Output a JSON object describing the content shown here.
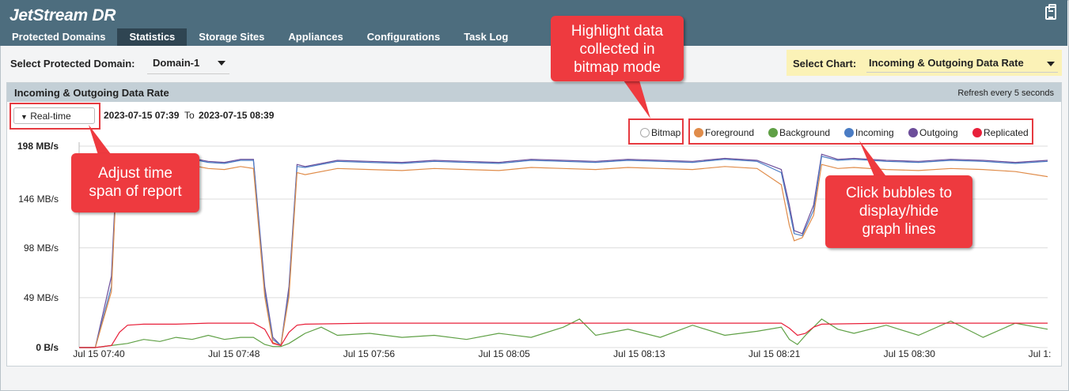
{
  "app": {
    "title": "JetStream DR",
    "clipboard_icon": "clipboard-icon"
  },
  "nav": {
    "tabs": [
      {
        "label": "Protected Domains",
        "active": false
      },
      {
        "label": "Statistics",
        "active": true
      },
      {
        "label": "Storage Sites",
        "active": false
      },
      {
        "label": "Appliances",
        "active": false
      },
      {
        "label": "Configurations",
        "active": false
      },
      {
        "label": "Task Log",
        "active": false
      }
    ]
  },
  "toolbar": {
    "domain_label": "Select Protected Domain:",
    "domain_value": "Domain-1",
    "chart_label": "Select Chart:",
    "chart_value": "Incoming & Outgoing Data Rate"
  },
  "panel": {
    "title": "Incoming & Outgoing Data Rate",
    "refresh": "Refresh every 5 seconds",
    "timespan": "Real-time",
    "from": "2023-07-15 07:39",
    "to_label": "To",
    "to": "2023-07-15 08:39"
  },
  "legend": {
    "bitmap": "Bitmap",
    "items": [
      {
        "label": "Foreground",
        "color": "#e08c4a"
      },
      {
        "label": "Background",
        "color": "#5fa045"
      },
      {
        "label": "Incoming",
        "color": "#4a7cc4"
      },
      {
        "label": "Outgoing",
        "color": "#6c4d9a"
      },
      {
        "label": "Replicated",
        "color": "#e8203a"
      }
    ]
  },
  "callouts": {
    "timespan": [
      "Adjust time",
      "span of report"
    ],
    "bitmap": [
      "Highlight data",
      "collected in",
      "bitmap mode"
    ],
    "bubbles": [
      "Click bubbles to",
      "display/hide",
      "graph lines"
    ]
  },
  "chart_data": {
    "type": "line",
    "y_ticks": [
      "0 B/s",
      "49 MB/s",
      "98 MB/s",
      "146 MB/s",
      "198 MB/s"
    ],
    "ylim": [
      0,
      198
    ],
    "x_ticks": [
      "Jul 15 07:40",
      "Jul 15 07:48",
      "Jul 15 07:56",
      "Jul 15 08:05",
      "Jul 15 08:13",
      "Jul 15 08:21",
      "Jul 15 08:30",
      "Jul 1:"
    ],
    "x_minutes": [
      0,
      60
    ],
    "series": [
      {
        "name": "Outgoing",
        "color": "#6c4d9a",
        "points": [
          [
            0,
            0
          ],
          [
            1,
            0
          ],
          [
            2,
            70
          ],
          [
            2.3,
            170
          ],
          [
            3,
            183
          ],
          [
            4,
            185
          ],
          [
            5,
            180
          ],
          [
            6,
            184
          ],
          [
            7,
            186
          ],
          [
            8,
            183
          ],
          [
            9,
            182
          ],
          [
            10,
            185
          ],
          [
            10.8,
            185
          ],
          [
            11.5,
            60
          ],
          [
            12,
            10
          ],
          [
            12.5,
            2
          ],
          [
            13,
            60
          ],
          [
            13.5,
            180
          ],
          [
            14,
            178
          ],
          [
            16,
            184
          ],
          [
            18,
            183
          ],
          [
            20,
            182
          ],
          [
            22,
            184
          ],
          [
            24,
            183
          ],
          [
            26,
            182
          ],
          [
            28,
            185
          ],
          [
            30,
            184
          ],
          [
            32,
            183
          ],
          [
            34,
            185
          ],
          [
            36,
            184
          ],
          [
            38,
            183
          ],
          [
            40,
            186
          ],
          [
            42,
            184
          ],
          [
            43.5,
            175
          ],
          [
            44,
            140
          ],
          [
            44.3,
            115
          ],
          [
            44.8,
            112
          ],
          [
            45.5,
            140
          ],
          [
            46,
            190
          ],
          [
            47,
            185
          ],
          [
            48,
            186
          ],
          [
            50,
            184
          ],
          [
            52,
            183
          ],
          [
            54,
            185
          ],
          [
            56,
            184
          ],
          [
            58,
            182
          ],
          [
            60,
            184
          ]
        ]
      },
      {
        "name": "Incoming",
        "color": "#4a7cc4",
        "points": [
          [
            0,
            0
          ],
          [
            1,
            0
          ],
          [
            2,
            60
          ],
          [
            2.3,
            165
          ],
          [
            3,
            182
          ],
          [
            4,
            184
          ],
          [
            5,
            179
          ],
          [
            6,
            183
          ],
          [
            7,
            185
          ],
          [
            8,
            182
          ],
          [
            9,
            181
          ],
          [
            10,
            184
          ],
          [
            10.8,
            184
          ],
          [
            11.5,
            55
          ],
          [
            12,
            8
          ],
          [
            12.5,
            2
          ],
          [
            13,
            55
          ],
          [
            13.5,
            178
          ],
          [
            14,
            177
          ],
          [
            16,
            183
          ],
          [
            18,
            182
          ],
          [
            20,
            181
          ],
          [
            22,
            183
          ],
          [
            24,
            182
          ],
          [
            26,
            181
          ],
          [
            28,
            184
          ],
          [
            30,
            183
          ],
          [
            32,
            182
          ],
          [
            34,
            184
          ],
          [
            36,
            183
          ],
          [
            38,
            182
          ],
          [
            40,
            185
          ],
          [
            42,
            183
          ],
          [
            43.5,
            172
          ],
          [
            44,
            135
          ],
          [
            44.3,
            112
          ],
          [
            44.8,
            110
          ],
          [
            45.5,
            135
          ],
          [
            46,
            188
          ],
          [
            47,
            184
          ],
          [
            48,
            185
          ],
          [
            50,
            183
          ],
          [
            52,
            182
          ],
          [
            54,
            184
          ],
          [
            56,
            183
          ],
          [
            58,
            181
          ],
          [
            60,
            183
          ]
        ]
      },
      {
        "name": "Foreground",
        "color": "#e08c4a",
        "points": [
          [
            0,
            0
          ],
          [
            1,
            0
          ],
          [
            2,
            55
          ],
          [
            2.3,
            160
          ],
          [
            3,
            176
          ],
          [
            4,
            178
          ],
          [
            5,
            174
          ],
          [
            6,
            177
          ],
          [
            7,
            179
          ],
          [
            8,
            176
          ],
          [
            9,
            175
          ],
          [
            10,
            178
          ],
          [
            10.8,
            176
          ],
          [
            11.5,
            50
          ],
          [
            12,
            5
          ],
          [
            12.5,
            2
          ],
          [
            13,
            50
          ],
          [
            13.5,
            172
          ],
          [
            14,
            170
          ],
          [
            16,
            176
          ],
          [
            18,
            175
          ],
          [
            20,
            174
          ],
          [
            22,
            176
          ],
          [
            24,
            175
          ],
          [
            26,
            174
          ],
          [
            28,
            177
          ],
          [
            30,
            176
          ],
          [
            32,
            175
          ],
          [
            34,
            177
          ],
          [
            36,
            176
          ],
          [
            38,
            175
          ],
          [
            40,
            178
          ],
          [
            42,
            176
          ],
          [
            43.5,
            160
          ],
          [
            44,
            120
          ],
          [
            44.3,
            105
          ],
          [
            44.8,
            108
          ],
          [
            45.5,
            130
          ],
          [
            46,
            180
          ],
          [
            47,
            176
          ],
          [
            48,
            177
          ],
          [
            50,
            175
          ],
          [
            52,
            174
          ],
          [
            54,
            176
          ],
          [
            56,
            175
          ],
          [
            58,
            173
          ],
          [
            60,
            168
          ]
        ]
      },
      {
        "name": "Background",
        "color": "#5fa045",
        "points": [
          [
            0,
            0
          ],
          [
            1,
            0
          ],
          [
            2,
            2
          ],
          [
            3,
            4
          ],
          [
            4,
            8
          ],
          [
            5,
            6
          ],
          [
            6,
            10
          ],
          [
            7,
            8
          ],
          [
            8,
            12
          ],
          [
            9,
            8
          ],
          [
            10,
            10
          ],
          [
            10.8,
            10
          ],
          [
            11.5,
            3
          ],
          [
            12,
            1
          ],
          [
            12.5,
            1
          ],
          [
            13,
            4
          ],
          [
            14,
            14
          ],
          [
            15,
            20
          ],
          [
            16,
            12
          ],
          [
            18,
            14
          ],
          [
            20,
            10
          ],
          [
            22,
            12
          ],
          [
            24,
            8
          ],
          [
            26,
            14
          ],
          [
            28,
            10
          ],
          [
            30,
            20
          ],
          [
            31,
            28
          ],
          [
            32,
            12
          ],
          [
            34,
            18
          ],
          [
            36,
            10
          ],
          [
            38,
            22
          ],
          [
            40,
            12
          ],
          [
            42,
            16
          ],
          [
            43.5,
            20
          ],
          [
            44,
            8
          ],
          [
            44.5,
            3
          ],
          [
            45,
            12
          ],
          [
            46,
            28
          ],
          [
            47,
            18
          ],
          [
            48,
            14
          ],
          [
            50,
            22
          ],
          [
            52,
            12
          ],
          [
            54,
            26
          ],
          [
            56,
            10
          ],
          [
            58,
            24
          ],
          [
            60,
            18
          ]
        ]
      },
      {
        "name": "Replicated",
        "color": "#e8203a",
        "points": [
          [
            0,
            0
          ],
          [
            1,
            0
          ],
          [
            2,
            2
          ],
          [
            2.5,
            15
          ],
          [
            3,
            22
          ],
          [
            4,
            23
          ],
          [
            6,
            23
          ],
          [
            8,
            24
          ],
          [
            10,
            24
          ],
          [
            10.8,
            24
          ],
          [
            11.5,
            18
          ],
          [
            12,
            4
          ],
          [
            12.5,
            2
          ],
          [
            13,
            15
          ],
          [
            13.5,
            22
          ],
          [
            14,
            23
          ],
          [
            18,
            24
          ],
          [
            22,
            24
          ],
          [
            26,
            24
          ],
          [
            30,
            24
          ],
          [
            34,
            24
          ],
          [
            38,
            24
          ],
          [
            42,
            24
          ],
          [
            43.5,
            24
          ],
          [
            44,
            19
          ],
          [
            44.5,
            12
          ],
          [
            45,
            14
          ],
          [
            45.5,
            20
          ],
          [
            46,
            23
          ],
          [
            50,
            24
          ],
          [
            54,
            24
          ],
          [
            58,
            24
          ],
          [
            60,
            24
          ]
        ]
      }
    ],
    "legend_position": "top-right",
    "grid": true
  }
}
